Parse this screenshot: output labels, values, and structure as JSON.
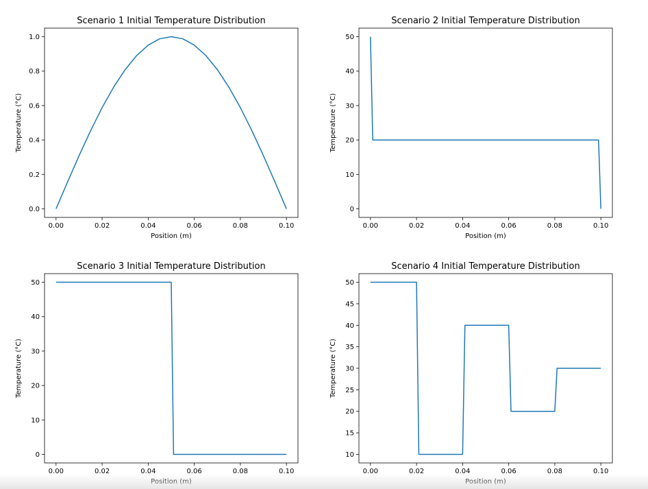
{
  "chart_data": [
    {
      "type": "line",
      "title": "Scenario 1 Initial Temperature Distribution",
      "xlabel": "Position (m)",
      "ylabel": "Temperature ($^\\circ$C)",
      "ylabel_display": "Temperature (°C)",
      "xlim": [
        -0.005,
        0.105
      ],
      "ylim": [
        -0.05,
        1.05
      ],
      "xticks": [
        0.0,
        0.02,
        0.04,
        0.06,
        0.08,
        0.1
      ],
      "xtick_labels": [
        "0.00",
        "0.02",
        "0.04",
        "0.06",
        "0.08",
        "0.10"
      ],
      "yticks": [
        0.0,
        0.2,
        0.4,
        0.6,
        0.8,
        1.0
      ],
      "ytick_labels": [
        "0.0",
        "0.2",
        "0.4",
        "0.6",
        "0.8",
        "1.0"
      ],
      "series": [
        {
          "color": "#1f77b4",
          "x": [
            0,
            0.005,
            0.01,
            0.015,
            0.02,
            0.025,
            0.03,
            0.035,
            0.04,
            0.045,
            0.05,
            0.055,
            0.06,
            0.065,
            0.07,
            0.075,
            0.08,
            0.085,
            0.09,
            0.095,
            0.1
          ],
          "y": [
            0,
            0.156,
            0.309,
            0.454,
            0.588,
            0.707,
            0.809,
            0.891,
            0.951,
            0.988,
            1.0,
            0.988,
            0.951,
            0.891,
            0.809,
            0.707,
            0.588,
            0.454,
            0.309,
            0.156,
            0
          ]
        }
      ]
    },
    {
      "type": "line",
      "title": "Scenario 2 Initial Temperature Distribution",
      "xlabel": "Position (m)",
      "ylabel": "Temperature ($^\\circ$C)",
      "ylabel_display": "Temperature (°C)",
      "xlim": [
        -0.005,
        0.105
      ],
      "ylim": [
        -2.5,
        52.5
      ],
      "xticks": [
        0.0,
        0.02,
        0.04,
        0.06,
        0.08,
        0.1
      ],
      "xtick_labels": [
        "0.00",
        "0.02",
        "0.04",
        "0.06",
        "0.08",
        "0.10"
      ],
      "yticks": [
        0,
        10,
        20,
        30,
        40,
        50
      ],
      "ytick_labels": [
        "0",
        "10",
        "20",
        "30",
        "40",
        "50"
      ],
      "series": [
        {
          "color": "#1f77b4",
          "x": [
            0,
            0.001,
            0.099,
            0.1
          ],
          "y": [
            50,
            20,
            20,
            0
          ]
        }
      ]
    },
    {
      "type": "line",
      "title": "Scenario 3 Initial Temperature Distribution",
      "xlabel": "Position (m)",
      "ylabel": "Temperature ($^\\circ$C)",
      "ylabel_display": "Temperature (°C)",
      "xlim": [
        -0.005,
        0.105
      ],
      "ylim": [
        -2.5,
        52.5
      ],
      "xticks": [
        0.0,
        0.02,
        0.04,
        0.06,
        0.08,
        0.1
      ],
      "xtick_labels": [
        "0.00",
        "0.02",
        "0.04",
        "0.06",
        "0.08",
        "0.10"
      ],
      "yticks": [
        0,
        10,
        20,
        30,
        40,
        50
      ],
      "ytick_labels": [
        "0",
        "10",
        "20",
        "30",
        "40",
        "50"
      ],
      "series": [
        {
          "color": "#1f77b4",
          "x": [
            0,
            0.05,
            0.051,
            0.1
          ],
          "y": [
            50,
            50,
            0,
            0
          ]
        }
      ]
    },
    {
      "type": "line",
      "title": "Scenario 4 Initial Temperature Distribution",
      "xlabel": "Position (m)",
      "ylabel": "Temperature ($^\\circ$C)",
      "ylabel_display": "Temperature (°C)",
      "xlim": [
        -0.005,
        0.105
      ],
      "ylim": [
        8.0,
        52.0
      ],
      "xticks": [
        0.0,
        0.02,
        0.04,
        0.06,
        0.08,
        0.1
      ],
      "xtick_labels": [
        "0.00",
        "0.02",
        "0.04",
        "0.06",
        "0.08",
        "0.10"
      ],
      "yticks": [
        10,
        15,
        20,
        25,
        30,
        35,
        40,
        45,
        50
      ],
      "ytick_labels": [
        "10",
        "15",
        "20",
        "25",
        "30",
        "35",
        "40",
        "45",
        "50"
      ],
      "series": [
        {
          "color": "#1f77b4",
          "x": [
            0,
            0.02,
            0.021,
            0.04,
            0.041,
            0.06,
            0.061,
            0.08,
            0.081,
            0.1
          ],
          "y": [
            50,
            50,
            10,
            10,
            40,
            40,
            20,
            20,
            30,
            30
          ]
        }
      ]
    }
  ]
}
